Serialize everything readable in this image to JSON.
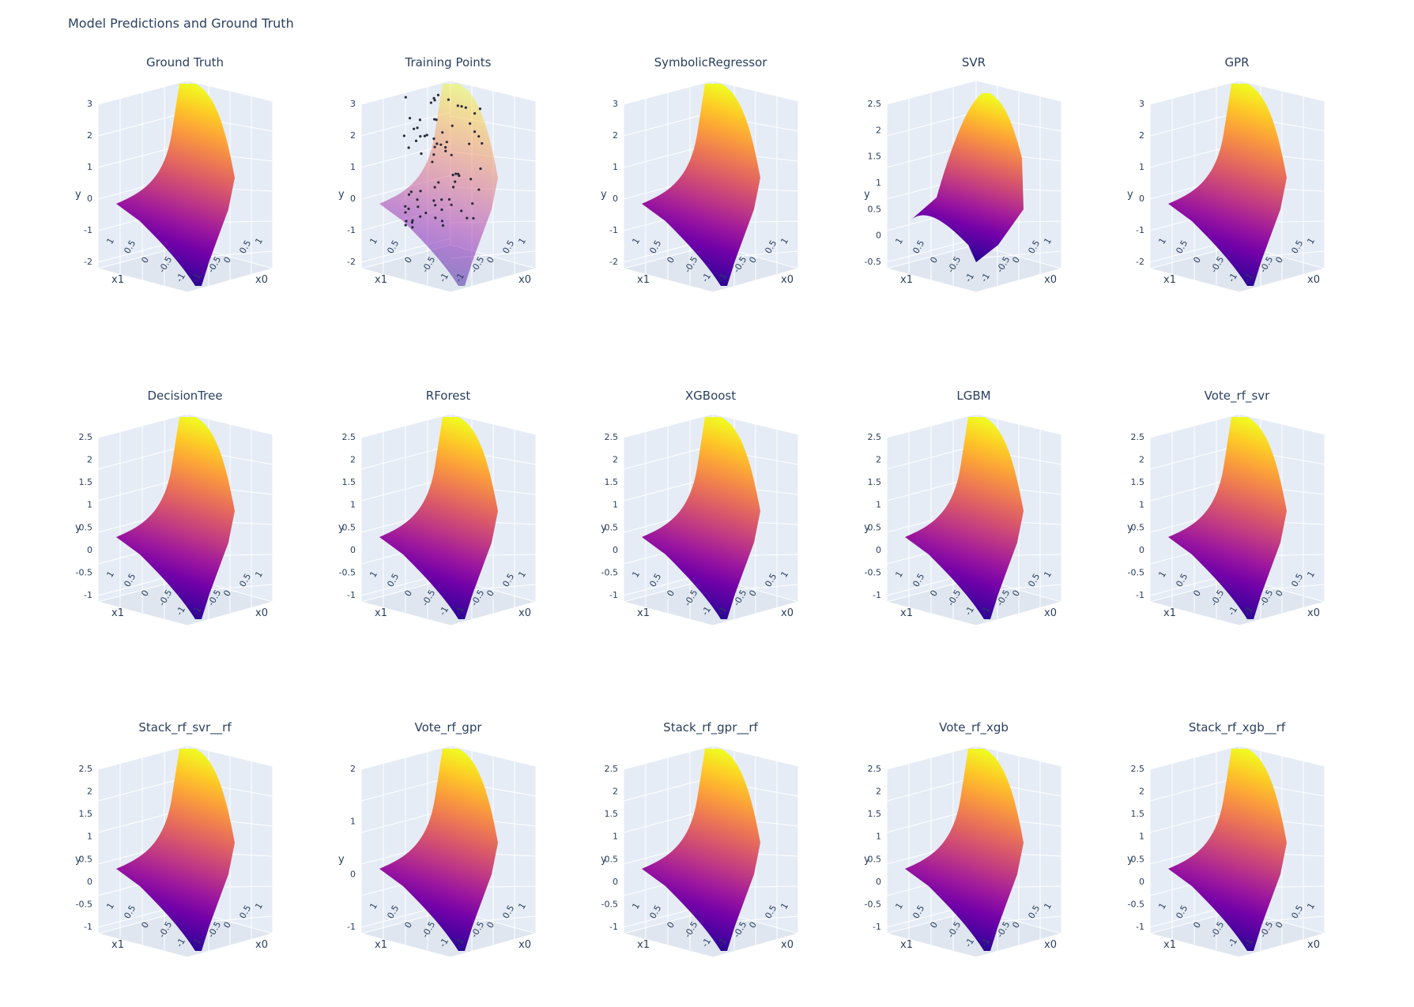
{
  "figure_title": "Model Predictions and Ground Truth",
  "chart_data": [
    {
      "type": "surface",
      "title": "Ground Truth",
      "ylabel": "y",
      "x0label": "x0",
      "x1label": "x1",
      "ytick_labels": [
        "3",
        "2",
        "1",
        "0",
        "-1",
        "-2"
      ],
      "x0_ticks": [
        "1",
        "0.5",
        "0",
        "-0.5",
        "-1"
      ],
      "x1_ticks": [
        "1",
        "0.5",
        "0",
        "-0.5",
        "-1"
      ],
      "colorscale": "Plasma",
      "training_points": false
    },
    {
      "type": "surface",
      "title": "Training Points",
      "ylabel": "y",
      "x0label": "x0",
      "x1label": "x1",
      "ytick_labels": [
        "3",
        "2",
        "1",
        "0",
        "-1",
        "-2"
      ],
      "x0_ticks": [
        "1",
        "0.5",
        "0",
        "-0.5",
        "-1"
      ],
      "x1_ticks": [
        "1",
        "0.5",
        "0",
        "-0.5",
        "-1"
      ],
      "colorscale": "Plasma",
      "training_points": true
    },
    {
      "type": "surface",
      "title": "SymbolicRegressor",
      "ylabel": "y",
      "x0label": "x0",
      "x1label": "x1",
      "ytick_labels": [
        "3",
        "2",
        "1",
        "0",
        "-1",
        "-2"
      ],
      "x0_ticks": [
        "1",
        "0.5",
        "0",
        "-0.5",
        "-1"
      ],
      "x1_ticks": [
        "1",
        "0.5",
        "0",
        "-0.5",
        "-1"
      ],
      "colorscale": "Plasma",
      "training_points": false
    },
    {
      "type": "surface",
      "title": "SVR",
      "ylabel": "y",
      "x0label": "x0",
      "x1label": "x1",
      "ytick_labels": [
        "2.5",
        "2",
        "1.5",
        "1",
        "0.5",
        "0",
        "-0.5"
      ],
      "x0_ticks": [
        "1",
        "0.5",
        "0",
        "-0.5",
        "-1"
      ],
      "x1_ticks": [
        "1",
        "0.5",
        "0",
        "-0.5",
        "-1"
      ],
      "colorscale": "Plasma",
      "training_points": false
    },
    {
      "type": "surface",
      "title": "GPR",
      "ylabel": "y",
      "x0label": "x0",
      "x1label": "x1",
      "ytick_labels": [
        "3",
        "2",
        "1",
        "0",
        "-1",
        "-2"
      ],
      "x0_ticks": [
        "1",
        "0.5",
        "0",
        "-0.5",
        "-1"
      ],
      "x1_ticks": [
        "1",
        "0.5",
        "0",
        "-0.5",
        "-1"
      ],
      "colorscale": "Plasma",
      "training_points": false
    },
    {
      "type": "surface",
      "title": "DecisionTree",
      "ylabel": "y",
      "x0label": "x0",
      "x1label": "x1",
      "ytick_labels": [
        "2.5",
        "2",
        "1.5",
        "1",
        "0.5",
        "0",
        "-0.5",
        "-1"
      ],
      "x0_ticks": [
        "1",
        "0.5",
        "0",
        "-0.5",
        "-1"
      ],
      "x1_ticks": [
        "1",
        "0.5",
        "0",
        "-0.5",
        "-1"
      ],
      "colorscale": "Plasma",
      "training_points": false
    },
    {
      "type": "surface",
      "title": "RForest",
      "ylabel": "y",
      "x0label": "x0",
      "x1label": "x1",
      "ytick_labels": [
        "2.5",
        "2",
        "1.5",
        "1",
        "0.5",
        "0",
        "-0.5",
        "-1"
      ],
      "x0_ticks": [
        "1",
        "0.5",
        "0",
        "-0.5",
        "-1"
      ],
      "x1_ticks": [
        "1",
        "0.5",
        "0",
        "-0.5",
        "-1"
      ],
      "colorscale": "Plasma",
      "training_points": false
    },
    {
      "type": "surface",
      "title": "XGBoost",
      "ylabel": "y",
      "x0label": "x0",
      "x1label": "x1",
      "ytick_labels": [
        "2.5",
        "2",
        "1.5",
        "1",
        "0.5",
        "0",
        "-0.5",
        "-1"
      ],
      "x0_ticks": [
        "1",
        "0.5",
        "0",
        "-0.5",
        "-1"
      ],
      "x1_ticks": [
        "1",
        "0.5",
        "0",
        "-0.5",
        "-1"
      ],
      "colorscale": "Plasma",
      "training_points": false
    },
    {
      "type": "surface",
      "title": "LGBM",
      "ylabel": "y",
      "x0label": "x0",
      "x1label": "x1",
      "ytick_labels": [
        "2.5",
        "2",
        "1.5",
        "1",
        "0.5",
        "0",
        "-0.5",
        "-1"
      ],
      "x0_ticks": [
        "1",
        "0.5",
        "0",
        "-0.5",
        "-1"
      ],
      "x1_ticks": [
        "1",
        "0.5",
        "0",
        "-0.5",
        "-1"
      ],
      "colorscale": "Plasma",
      "training_points": false
    },
    {
      "type": "surface",
      "title": "Vote_rf_svr",
      "ylabel": "y",
      "x0label": "x0",
      "x1label": "x1",
      "ytick_labels": [
        "2.5",
        "2",
        "1.5",
        "1",
        "0.5",
        "0",
        "-0.5",
        "-1"
      ],
      "x0_ticks": [
        "1",
        "0.5",
        "0",
        "-0.5",
        "-1"
      ],
      "x1_ticks": [
        "1",
        "0.5",
        "0",
        "-0.5",
        "-1"
      ],
      "colorscale": "Plasma",
      "training_points": false
    },
    {
      "type": "surface",
      "title": "Stack_rf_svr__rf",
      "ylabel": "y",
      "x0label": "x0",
      "x1label": "x1",
      "ytick_labels": [
        "2.5",
        "2",
        "1.5",
        "1",
        "0.5",
        "0",
        "-0.5",
        "-1"
      ],
      "x0_ticks": [
        "1",
        "0.5",
        "0",
        "-0.5",
        "-1"
      ],
      "x1_ticks": [
        "1",
        "0.5",
        "0",
        "-0.5",
        "-1"
      ],
      "colorscale": "Plasma",
      "training_points": false
    },
    {
      "type": "surface",
      "title": "Vote_rf_gpr",
      "ylabel": "y",
      "x0label": "x0",
      "x1label": "x1",
      "ytick_labels": [
        "2",
        "1",
        "0",
        "-1"
      ],
      "x0_ticks": [
        "1",
        "0.5",
        "0",
        "-0.5",
        "-1"
      ],
      "x1_ticks": [
        "1",
        "0.5",
        "0",
        "-0.5",
        "-1"
      ],
      "colorscale": "Plasma",
      "training_points": false
    },
    {
      "type": "surface",
      "title": "Stack_rf_gpr__rf",
      "ylabel": "y",
      "x0label": "x0",
      "x1label": "x1",
      "ytick_labels": [
        "2.5",
        "2",
        "1.5",
        "1",
        "0.5",
        "0",
        "-0.5",
        "-1"
      ],
      "x0_ticks": [
        "1",
        "0.5",
        "0",
        "-0.5",
        "-1"
      ],
      "x1_ticks": [
        "1",
        "0.5",
        "0",
        "-0.5",
        "-1"
      ],
      "colorscale": "Plasma",
      "training_points": false
    },
    {
      "type": "surface",
      "title": "Vote_rf_xgb",
      "ylabel": "y",
      "x0label": "x0",
      "x1label": "x1",
      "ytick_labels": [
        "2.5",
        "2",
        "1.5",
        "1",
        "0.5",
        "0",
        "-0.5",
        "-1"
      ],
      "x0_ticks": [
        "1",
        "0.5",
        "0",
        "-0.5",
        "-1"
      ],
      "x1_ticks": [
        "1",
        "0.5",
        "0",
        "-0.5",
        "-1"
      ],
      "colorscale": "Plasma",
      "training_points": false
    },
    {
      "type": "surface",
      "title": "Stack_rf_xgb__rf",
      "ylabel": "y",
      "x0label": "x0",
      "x1label": "x1",
      "ytick_labels": [
        "2.5",
        "2",
        "1.5",
        "1",
        "0.5",
        "0",
        "-0.5",
        "-1"
      ],
      "x0_ticks": [
        "1",
        "0.5",
        "0",
        "-0.5",
        "-1"
      ],
      "x1_ticks": [
        "1",
        "0.5",
        "0",
        "-0.5",
        "-1"
      ],
      "colorscale": "Plasma",
      "training_points": false
    }
  ]
}
